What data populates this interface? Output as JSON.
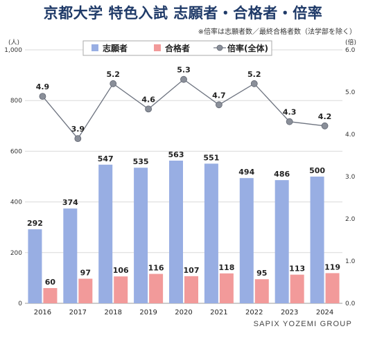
{
  "title": "京都大学 特色入試 志願者・合格者・倍率",
  "note": "※倍率は志願者数／最終合格者数（法学部を除く）",
  "source": "SAPIX YOZEMI GROUP",
  "chart_data": {
    "type": "bar",
    "categories": [
      "2016",
      "2017",
      "2018",
      "2019",
      "2020",
      "2021",
      "2022",
      "2023",
      "2024"
    ],
    "series": [
      {
        "name": "志願者",
        "kind": "bar",
        "axis": "left",
        "color": "#98aee3",
        "values": [
          292,
          374,
          547,
          535,
          563,
          551,
          494,
          486,
          500
        ]
      },
      {
        "name": "合格者",
        "kind": "bar",
        "axis": "left",
        "color": "#f29a9a",
        "values": [
          60,
          97,
          106,
          116,
          107,
          118,
          95,
          113,
          119
        ]
      },
      {
        "name": "倍率(全体)",
        "kind": "line",
        "axis": "right",
        "color": "#8a8f99",
        "values": [
          4.9,
          3.9,
          5.2,
          4.6,
          5.3,
          4.7,
          5.2,
          4.3,
          4.2
        ]
      }
    ],
    "y_left": {
      "unit": "(人)",
      "range": [
        0,
        1000
      ],
      "ticks": [
        "0",
        "200",
        "400",
        "600",
        "800",
        "1,000"
      ]
    },
    "y_right": {
      "unit": "(倍)",
      "range": [
        0,
        6.0
      ],
      "ticks": [
        "0.0",
        "1.0",
        "2.0",
        "3.0",
        "4.0",
        "5.0",
        "6.0"
      ]
    },
    "grid": true,
    "legend_position": "top"
  }
}
